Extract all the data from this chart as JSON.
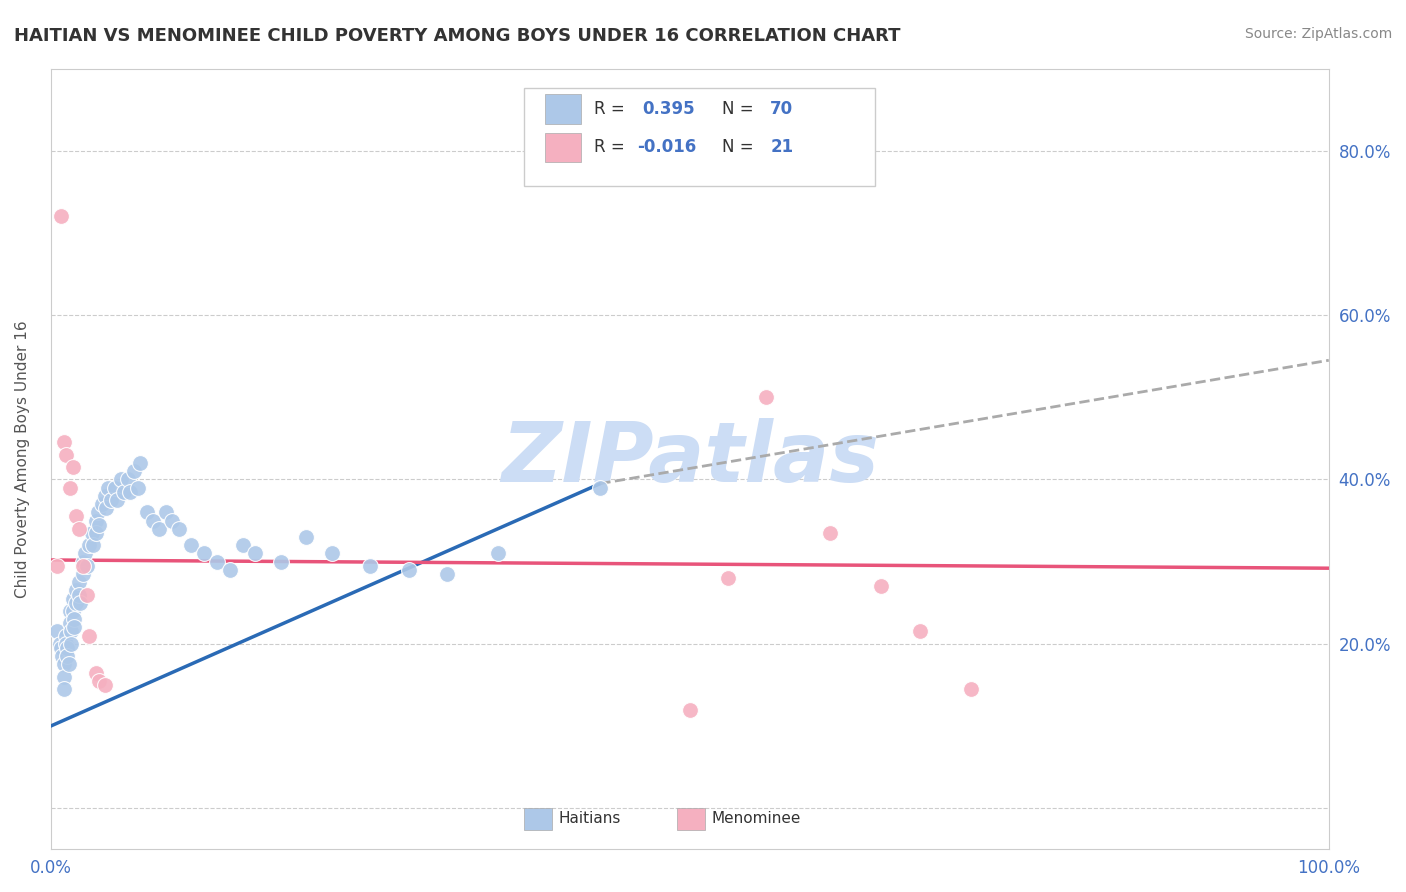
{
  "title": "HAITIAN VS MENOMINEE CHILD POVERTY AMONG BOYS UNDER 16 CORRELATION CHART",
  "source": "Source: ZipAtlas.com",
  "ylabel": "Child Poverty Among Boys Under 16",
  "xlim": [
    0,
    1.0
  ],
  "ylim": [
    -0.05,
    0.9
  ],
  "yticklabels_right": [
    "",
    "20.0%",
    "40.0%",
    "60.0%",
    "80.0%"
  ],
  "R_blue": 0.395,
  "N_blue": 70,
  "R_pink": -0.016,
  "N_pink": 21,
  "blue_color": "#adc8e8",
  "pink_color": "#f5b0c0",
  "blue_line_color": "#2a6ab5",
  "pink_line_color": "#e8547a",
  "dashed_line_color": "#aaaaaa",
  "watermark": "ZIPatlas",
  "watermark_color": "#ccddf5",
  "blue_dots_x": [
    0.005,
    0.007,
    0.008,
    0.009,
    0.01,
    0.01,
    0.01,
    0.012,
    0.012,
    0.013,
    0.013,
    0.014,
    0.015,
    0.015,
    0.016,
    0.016,
    0.017,
    0.017,
    0.018,
    0.018,
    0.02,
    0.02,
    0.022,
    0.022,
    0.023,
    0.025,
    0.025,
    0.027,
    0.028,
    0.03,
    0.032,
    0.033,
    0.035,
    0.035,
    0.037,
    0.038,
    0.04,
    0.042,
    0.043,
    0.045,
    0.047,
    0.05,
    0.052,
    0.055,
    0.057,
    0.06,
    0.062,
    0.065,
    0.068,
    0.07,
    0.075,
    0.08,
    0.085,
    0.09,
    0.095,
    0.1,
    0.11,
    0.12,
    0.13,
    0.14,
    0.15,
    0.16,
    0.18,
    0.2,
    0.22,
    0.25,
    0.28,
    0.31,
    0.35,
    0.43
  ],
  "blue_dots_y": [
    0.215,
    0.2,
    0.195,
    0.185,
    0.175,
    0.16,
    0.145,
    0.21,
    0.2,
    0.195,
    0.185,
    0.175,
    0.24,
    0.225,
    0.215,
    0.2,
    0.255,
    0.24,
    0.23,
    0.22,
    0.265,
    0.25,
    0.275,
    0.26,
    0.25,
    0.3,
    0.285,
    0.31,
    0.295,
    0.32,
    0.335,
    0.32,
    0.35,
    0.335,
    0.36,
    0.345,
    0.37,
    0.38,
    0.365,
    0.39,
    0.375,
    0.39,
    0.375,
    0.4,
    0.385,
    0.4,
    0.385,
    0.41,
    0.39,
    0.42,
    0.36,
    0.35,
    0.34,
    0.36,
    0.35,
    0.34,
    0.32,
    0.31,
    0.3,
    0.29,
    0.32,
    0.31,
    0.3,
    0.33,
    0.31,
    0.295,
    0.29,
    0.285,
    0.31,
    0.39
  ],
  "pink_dots_x": [
    0.005,
    0.008,
    0.01,
    0.012,
    0.015,
    0.017,
    0.02,
    0.022,
    0.025,
    0.028,
    0.03,
    0.035,
    0.038,
    0.042,
    0.5,
    0.53,
    0.56,
    0.61,
    0.65,
    0.68,
    0.72
  ],
  "pink_dots_y": [
    0.295,
    0.72,
    0.445,
    0.43,
    0.39,
    0.415,
    0.355,
    0.34,
    0.295,
    0.26,
    0.21,
    0.165,
    0.155,
    0.15,
    0.12,
    0.28,
    0.5,
    0.335,
    0.27,
    0.215,
    0.145
  ],
  "blue_line_x0": 0.0,
  "blue_line_x1": 0.43,
  "blue_line_y0": 0.1,
  "blue_line_y1": 0.395,
  "dash_line_x0": 0.43,
  "dash_line_x1": 1.0,
  "dash_line_y0": 0.395,
  "dash_line_y1": 0.545,
  "pink_line_x0": 0.0,
  "pink_line_x1": 1.0,
  "pink_line_y0": 0.302,
  "pink_line_y1": 0.292,
  "figsize": [
    14.06,
    8.92
  ],
  "dpi": 100
}
